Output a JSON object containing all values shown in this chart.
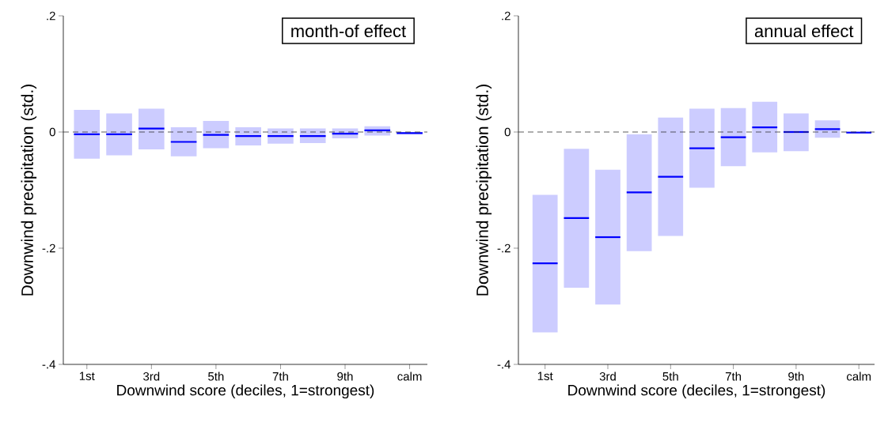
{
  "chart_data": [
    {
      "type": "box",
      "ylabel": "Downwind precipitation (std.)",
      "xlabel": "Downwind score (deciles, 1=strongest)",
      "categories": [
        "1st",
        null,
        "3rd",
        null,
        "5th",
        null,
        "7th",
        null,
        "9th",
        null,
        "calm"
      ],
      "ylim": [
        -0.4,
        0.2
      ],
      "yticks": [
        {
          "value": 0.2,
          "label": ".2"
        },
        0,
        {
          "value": -0.2,
          "label": "-.2"
        },
        {
          "value": -0.4,
          "label": "-.4"
        }
      ],
      "ref_lines": [
        {
          "axis": "y",
          "value": 0,
          "line_style": "dashed",
          "color": "#333333"
        }
      ],
      "annotations": [
        "month-of effect"
      ],
      "series": [
        {
          "color": "#ccccff",
          "boxes": [
            {
              "low": -0.046,
              "q1": -0.046,
              "median": -0.004,
              "q3": 0.038,
              "high": 0.038
            },
            {
              "low": -0.04,
              "q1": -0.04,
              "median": -0.004,
              "q3": 0.032,
              "high": 0.032
            },
            {
              "low": -0.03,
              "q1": -0.03,
              "median": 0.006,
              "q3": 0.04,
              "high": 0.04
            },
            {
              "low": -0.042,
              "q1": -0.042,
              "median": -0.017,
              "q3": 0.008,
              "high": 0.008
            },
            {
              "low": -0.028,
              "q1": -0.028,
              "median": -0.005,
              "q3": 0.019,
              "high": 0.019
            },
            {
              "low": -0.023,
              "q1": -0.023,
              "median": -0.007,
              "q3": 0.008,
              "high": 0.008
            },
            {
              "low": -0.02,
              "q1": -0.02,
              "median": -0.007,
              "q3": 0.006,
              "high": 0.006
            },
            {
              "low": -0.019,
              "q1": -0.019,
              "median": -0.007,
              "q3": 0.006,
              "high": 0.006
            },
            {
              "low": -0.011,
              "q1": -0.011,
              "median": -0.003,
              "q3": 0.006,
              "high": 0.006
            },
            {
              "low": -0.006,
              "q1": -0.006,
              "median": 0.003,
              "q3": 0.01,
              "high": 0.01
            },
            {
              "low": -0.004,
              "q1": -0.004,
              "median": -0.002,
              "q3": 0,
              "high": 0
            }
          ]
        }
      ]
    },
    {
      "type": "box",
      "ylabel": "Downwind precipitation (std.)",
      "xlabel": "Downwind score (deciles, 1=strongest)",
      "categories": [
        "1st",
        null,
        "3rd",
        null,
        "5th",
        null,
        "7th",
        null,
        "9th",
        null,
        "calm"
      ],
      "ylim": [
        -0.4,
        0.2
      ],
      "yticks": [
        {
          "value": 0.2,
          "label": ".2"
        },
        0,
        {
          "value": -0.2,
          "label": "-.2"
        },
        {
          "value": -0.4,
          "label": "-.4"
        }
      ],
      "ref_lines": [
        {
          "axis": "y",
          "value": 0,
          "line_style": "dashed",
          "color": "#333333"
        }
      ],
      "annotations": [
        "annual effect"
      ],
      "series": [
        {
          "color": "#ccccff",
          "boxes": [
            {
              "low": -0.345,
              "q1": -0.345,
              "median": -0.226,
              "q3": -0.108,
              "high": -0.108
            },
            {
              "low": -0.268,
              "q1": -0.268,
              "median": -0.148,
              "q3": -0.029,
              "high": -0.029
            },
            {
              "low": -0.297,
              "q1": -0.297,
              "median": -0.181,
              "q3": -0.065,
              "high": -0.065
            },
            {
              "low": -0.205,
              "q1": -0.205,
              "median": -0.104,
              "q3": -0.004,
              "high": -0.004
            },
            {
              "low": -0.179,
              "q1": -0.179,
              "median": -0.077,
              "q3": 0.025,
              "high": 0.025
            },
            {
              "low": -0.096,
              "q1": -0.096,
              "median": -0.028,
              "q3": 0.04,
              "high": 0.04
            },
            {
              "low": -0.059,
              "q1": -0.059,
              "median": -0.009,
              "q3": 0.041,
              "high": 0.041
            },
            {
              "low": -0.035,
              "q1": -0.035,
              "median": 0.008,
              "q3": 0.052,
              "high": 0.052
            },
            {
              "low": -0.033,
              "q1": -0.033,
              "median": 0,
              "q3": 0.032,
              "high": 0.032
            },
            {
              "low": -0.01,
              "q1": -0.01,
              "median": 0.005,
              "q3": 0.02,
              "high": 0.02
            },
            {
              "low": -0.003,
              "q1": -0.003,
              "median": -0.001,
              "q3": 0.001,
              "high": 0.001
            }
          ]
        }
      ]
    }
  ]
}
